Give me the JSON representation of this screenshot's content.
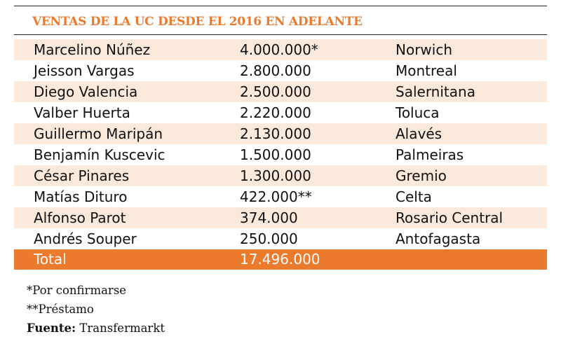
{
  "title": "VENTAS DE LA UC DESDE EL 2016 EN ADELANTE",
  "rows": [
    {
      "player": "Marcelino Núñez",
      "amount": "4.000.000*",
      "club": "Norwich"
    },
    {
      "player": "Jeisson Vargas",
      "amount": "2.800.000",
      "club": "Montreal"
    },
    {
      "player": "Diego Valencia",
      "amount": "2.500.000",
      "club": "Salernitana"
    },
    {
      "player": "Valber Huerta",
      "amount": "2.220.000",
      "club": "Toluca"
    },
    {
      "player": "Guillermo Maripán",
      "amount": "2.130.000",
      "club": "Alavés"
    },
    {
      "player": "Benjamín Kuscevic",
      "amount": "1.500.000",
      "club": "Palmeiras"
    },
    {
      "player": "César Pinares",
      "amount": "1.300.000",
      "club": "Gremio"
    },
    {
      "player": "Matías Dituro",
      "amount": "422.000**",
      "club": "Celta"
    },
    {
      "player": "Alfonso Parot",
      "amount": "374.000",
      "club": "Rosario Central"
    },
    {
      "player": "Andrés Souper",
      "amount": "250.000",
      "club": "Antofagasta"
    }
  ],
  "total": {
    "label": "Total",
    "amount": "17.496.000"
  },
  "notes": {
    "note1": "*Por confirmarse",
    "note2": "**Préstamo",
    "source_label": "Fuente:",
    "source_value": " Transfermarkt"
  },
  "colors": {
    "accent": "#ec7a2c",
    "row_tint": "#fbe9dc"
  }
}
